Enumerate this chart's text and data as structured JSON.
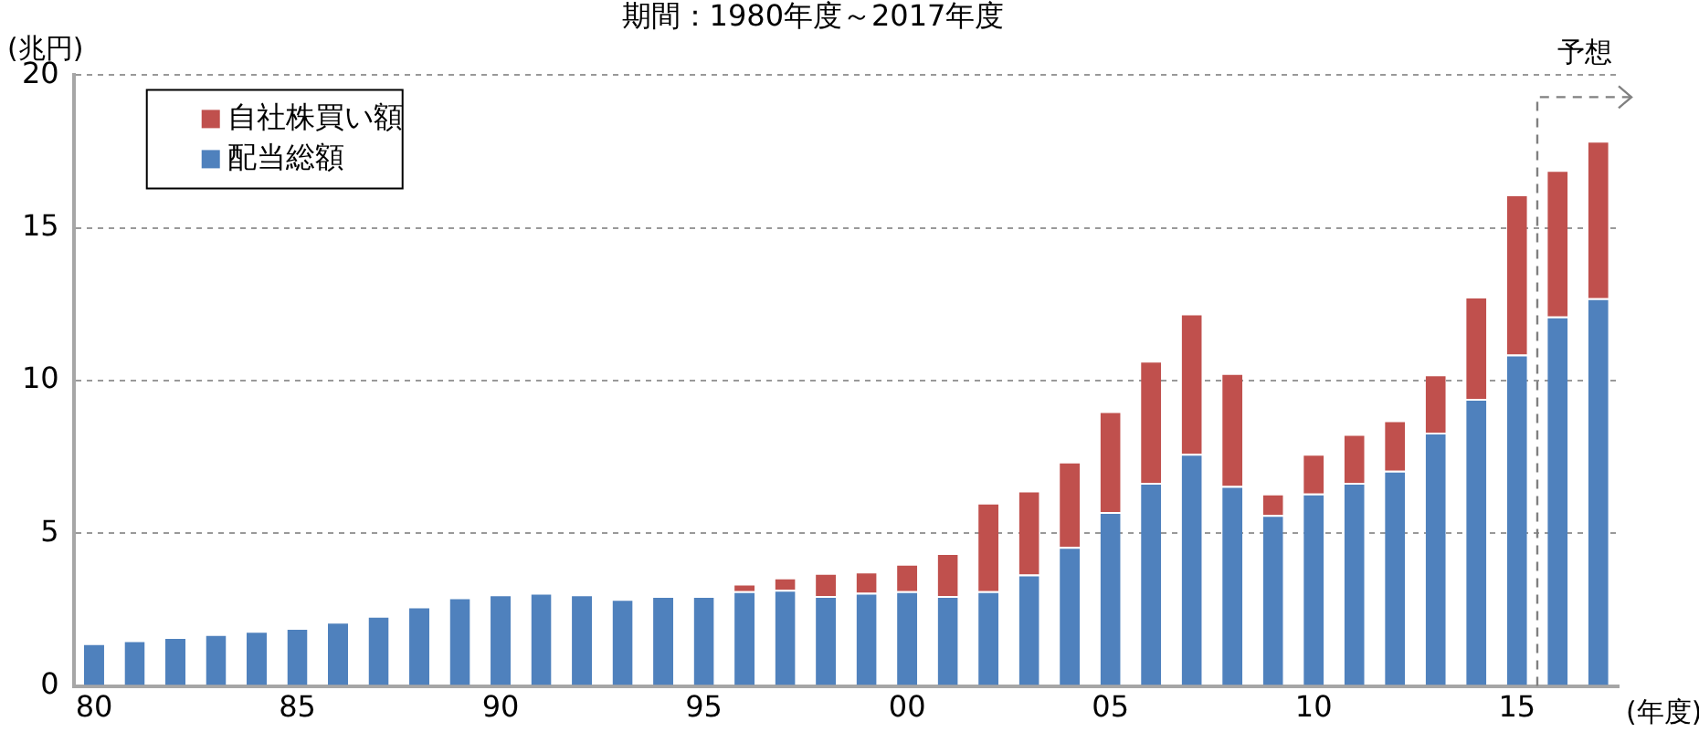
{
  "chart_data": {
    "type": "bar",
    "title": "期間：1980年度～2017年度",
    "xlabel": "(年度)",
    "ylabel": "(兆円)",
    "stacked": true,
    "x": [
      1980,
      1981,
      1982,
      1983,
      1984,
      1985,
      1986,
      1987,
      1988,
      1989,
      1990,
      1991,
      1992,
      1993,
      1994,
      1995,
      1996,
      1997,
      1998,
      1999,
      2000,
      2001,
      2002,
      2003,
      2004,
      2005,
      2006,
      2007,
      2008,
      2009,
      2010,
      2011,
      2012,
      2013,
      2014,
      2015,
      2016,
      2017
    ],
    "series": [
      {
        "name": "配当総額",
        "color": "#4f81bd",
        "values": [
          1.4,
          1.5,
          1.6,
          1.7,
          1.8,
          1.9,
          2.1,
          2.3,
          2.6,
          2.9,
          3.0,
          3.05,
          3.0,
          2.85,
          2.95,
          2.95,
          3.1,
          3.15,
          2.95,
          3.05,
          3.1,
          2.95,
          3.1,
          3.65,
          4.55,
          5.7,
          6.65,
          7.6,
          6.55,
          5.6,
          6.3,
          6.65,
          7.05,
          8.3,
          9.4,
          10.85,
          12.1,
          12.7
        ]
      },
      {
        "name": "自社株買い額",
        "color": "#c0504d",
        "values": [
          null,
          null,
          null,
          null,
          null,
          null,
          null,
          null,
          null,
          null,
          null,
          null,
          null,
          null,
          null,
          null,
          0.25,
          0.4,
          0.75,
          0.7,
          0.9,
          1.4,
          2.9,
          2.75,
          2.8,
          3.3,
          4.0,
          4.6,
          3.7,
          0.7,
          1.3,
          1.6,
          1.65,
          1.9,
          3.35,
          5.25,
          4.8,
          5.15
        ]
      }
    ],
    "xlim": [
      1979.5,
      2017.5
    ],
    "xticks": [
      {
        "value": 1980,
        "label": "80"
      },
      {
        "value": 1985,
        "label": "85"
      },
      {
        "value": 1990,
        "label": "90"
      },
      {
        "value": 1995,
        "label": "95"
      },
      {
        "value": 2000,
        "label": "00"
      },
      {
        "value": 2005,
        "label": "05"
      },
      {
        "value": 2010,
        "label": "10"
      },
      {
        "value": 2015,
        "label": "15"
      }
    ],
    "ylim": [
      0,
      20
    ],
    "yticks": [
      0,
      5,
      10,
      15,
      20
    ],
    "grid": "y",
    "legend": "top left",
    "ref_lines": [
      {
        "axis": "x",
        "value": 2015.5,
        "label": "予想",
        "color": "#808080",
        "line_style": "dashed"
      }
    ]
  }
}
